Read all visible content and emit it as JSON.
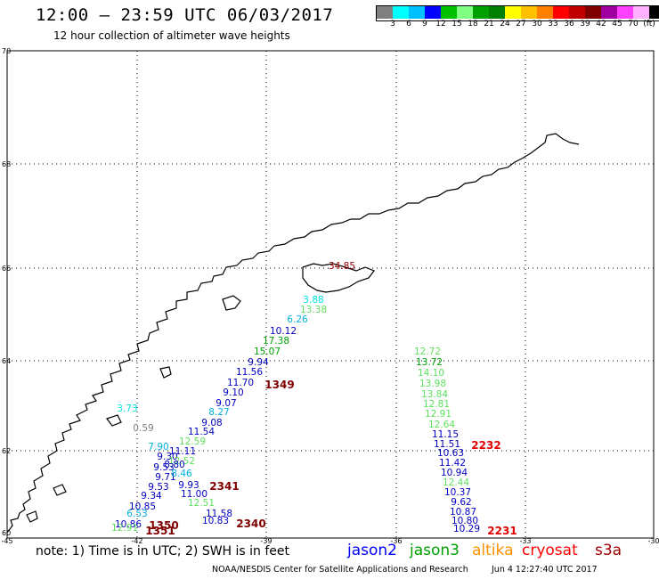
{
  "header": {
    "title": "12:00 – 23:59 UTC 06/03/2017",
    "subtitle": "12 hour collection of altimeter wave heights"
  },
  "scale": {
    "colors": [
      "#808080",
      "#00ffff",
      "#00bfff",
      "#0000ff",
      "#00c000",
      "#80ff80",
      "#00a000",
      "#008000",
      "#ffff00",
      "#ffc000",
      "#ff8000",
      "#ff0000",
      "#c00000",
      "#800000",
      "#a000a0",
      "#ff40ff",
      "#ffb0ff",
      "#000000"
    ],
    "labels": [
      "3",
      "6",
      "9",
      "12",
      "15",
      "18",
      "21",
      "24",
      "27",
      "30",
      "33",
      "36",
      "39",
      "42",
      "45",
      "70",
      "(ft)"
    ]
  },
  "axes": {
    "lat_labels": [
      "70",
      "68",
      "66",
      "64",
      "62",
      "60"
    ],
    "lon_labels": [
      "-45",
      "-42",
      "-39",
      "-36",
      "-33",
      "-30"
    ]
  },
  "orbit_labels": [
    "1349",
    "2341",
    "2340",
    "1350",
    "1351",
    "2232",
    "2231"
  ],
  "wave_heights": [
    {
      "v": "34.85",
      "c": "#a00000"
    },
    {
      "v": "3.88",
      "c": "#00e0e0"
    },
    {
      "v": "13.38",
      "c": "#60e060"
    },
    {
      "v": "6.26",
      "c": "#00b0e0"
    },
    {
      "v": "10.12",
      "c": "#0000c0"
    },
    {
      "v": "17.38",
      "c": "#00a000"
    },
    {
      "v": "15.07",
      "c": "#00a000"
    },
    {
      "v": "9.94",
      "c": "#0000c0"
    },
    {
      "v": "11.56",
      "c": "#0000c0"
    },
    {
      "v": "11.70",
      "c": "#0000c0"
    },
    {
      "v": "9.10",
      "c": "#0000c0"
    },
    {
      "v": "9.07",
      "c": "#0000c0"
    },
    {
      "v": "8.27",
      "c": "#00b0e0"
    },
    {
      "v": "9.08",
      "c": "#0000c0"
    },
    {
      "v": "11.54",
      "c": "#0000c0"
    },
    {
      "v": "12.59",
      "c": "#60e060"
    },
    {
      "v": "7.90",
      "c": "#00b0e0"
    },
    {
      "v": "11.11",
      "c": "#0000c0"
    },
    {
      "v": "9.30",
      "c": "#0000c0"
    },
    {
      "v": "12.52",
      "c": "#60e060"
    },
    {
      "v": "9.53",
      "c": "#0000c0"
    },
    {
      "v": "8.80",
      "c": "#0000c0"
    },
    {
      "v": "9.71",
      "c": "#0000c0"
    },
    {
      "v": "8.46",
      "c": "#00b0e0"
    },
    {
      "v": "9.53",
      "c": "#0000c0"
    },
    {
      "v": "9.93",
      "c": "#0000c0"
    },
    {
      "v": "9.34",
      "c": "#0000c0"
    },
    {
      "v": "11.00",
      "c": "#0000c0"
    },
    {
      "v": "10.85",
      "c": "#0000c0"
    },
    {
      "v": "12.51",
      "c": "#60e060"
    },
    {
      "v": "6.53",
      "c": "#00b0e0"
    },
    {
      "v": "11.58",
      "c": "#0000c0"
    },
    {
      "v": "10.86",
      "c": "#0000c0"
    },
    {
      "v": "10.83",
      "c": "#0000c0"
    },
    {
      "v": "12.91",
      "c": "#60e060"
    },
    {
      "v": "3.73",
      "c": "#00e0e0"
    },
    {
      "v": "0.59",
      "c": "#808080"
    },
    {
      "v": "12.72",
      "c": "#60e060"
    },
    {
      "v": "13.72",
      "c": "#00a000"
    },
    {
      "v": "14.10",
      "c": "#60e060"
    },
    {
      "v": "13.98",
      "c": "#60e060"
    },
    {
      "v": "13.84",
      "c": "#60e060"
    },
    {
      "v": "12.81",
      "c": "#60e060"
    },
    {
      "v": "12.91",
      "c": "#60e060"
    },
    {
      "v": "12.64",
      "c": "#60e060"
    },
    {
      "v": "11.15",
      "c": "#0000c0"
    },
    {
      "v": "11.51",
      "c": "#0000c0"
    },
    {
      "v": "10.63",
      "c": "#0000c0"
    },
    {
      "v": "11.42",
      "c": "#0000c0"
    },
    {
      "v": "10.94",
      "c": "#0000c0"
    },
    {
      "v": "12.44",
      "c": "#60e060"
    },
    {
      "v": "10.37",
      "c": "#0000c0"
    },
    {
      "v": "9.62",
      "c": "#0000c0"
    },
    {
      "v": "10.87",
      "c": "#0000c0"
    },
    {
      "v": "10.80",
      "c": "#0000c0"
    },
    {
      "v": "10.29",
      "c": "#0000c0"
    }
  ],
  "footer": {
    "note": "note: 1) Time is in UTC; 2) SWH is in feet",
    "credit": "NOAA/NESDIS Center for Satellite Applications and Research",
    "timestamp": "Jun  4 12:27:40 UTC 2017"
  },
  "satellites": [
    {
      "name": "jason2",
      "color": "#0000ff"
    },
    {
      "name": "jason3",
      "color": "#00a000"
    },
    {
      "name": "altika",
      "color": "#ff9000"
    },
    {
      "name": "cryosat",
      "color": "#ff0000"
    },
    {
      "name": "s3a",
      "color": "#a00000"
    }
  ]
}
